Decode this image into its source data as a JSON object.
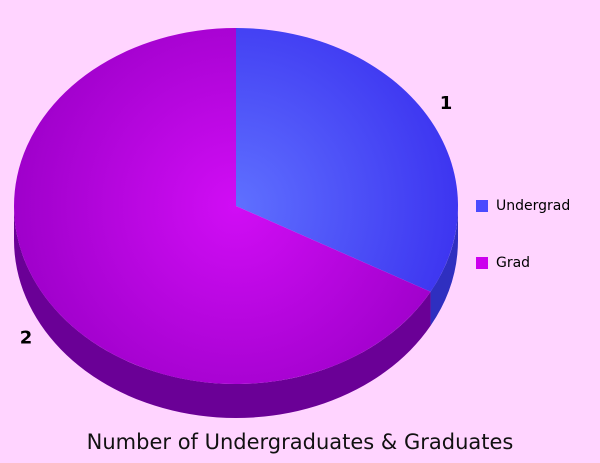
{
  "chart_data": {
    "type": "pie",
    "title": "Number of Undergraduates & Graduates",
    "categories": [
      "Undergrad",
      "Grad"
    ],
    "values": [
      33,
      67
    ],
    "data_labels": [
      "1",
      "2"
    ],
    "legend_position": "right",
    "colors": [
      "#4a4aff",
      "#cc00ee"
    ],
    "style": "3d"
  }
}
